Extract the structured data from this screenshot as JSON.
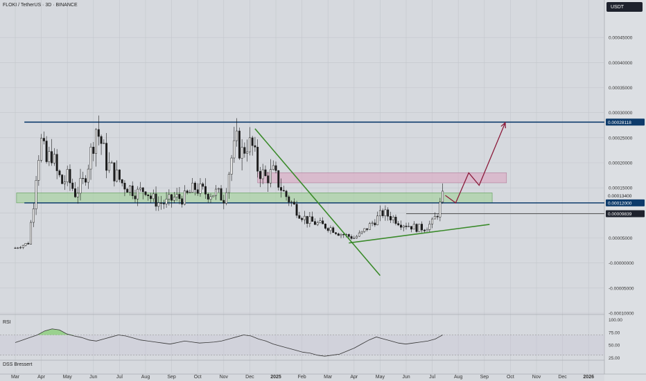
{
  "header": {
    "title": "FLOKI / TetherUS · 3D · BINANCE",
    "currency_button": "USDT"
  },
  "panels": {
    "rsi_label": "RSI",
    "dss_label": "DSS Bressert"
  },
  "colors": {
    "background": "#d6d9de",
    "grid": "#c3c6cc",
    "candle": "#1a1a1a",
    "resistance_line": "#0d3b6b",
    "green_zone": "#a8d1a3",
    "pink_zone": "#d9b3c8",
    "trend_green": "#3a8a2a",
    "projection": "#8b1a3a",
    "rsi_fill": "#8fcf80"
  },
  "chart_data": {
    "type": "candlestick",
    "title": "FLOKI / TetherUS · 3D · BINANCE",
    "ylim": [
      -0.0001,
      0.0005
    ],
    "y_ticks": [
      "-0.00010000",
      "-0.00005000",
      "-0.00000000",
      "0.00005000",
      "0.00010000",
      "0.00015000",
      "0.00020000",
      "0.00025000",
      "0.00030000",
      "0.00035000",
      "0.00040000",
      "0.00045000"
    ],
    "x_ticks": [
      "Mar",
      "Apr",
      "May",
      "Jun",
      "Jul",
      "Aug",
      "Sep",
      "Oct",
      "Nov",
      "Dec",
      "2025",
      "Feb",
      "Mar",
      "Apr",
      "May",
      "Jun",
      "Jul",
      "Aug",
      "Sep",
      "Oct",
      "Nov",
      "Dec",
      "2026"
    ],
    "price_labels": [
      {
        "value": 0.00028118,
        "text": "0.00028118",
        "style": "resistance"
      },
      {
        "value": 0.000134,
        "text": "0.00013400",
        "style": "plain"
      },
      {
        "value": 0.00012,
        "text": "0.00012000",
        "style": "resistance"
      },
      {
        "value": 9.839e-05,
        "text": "0.00009839",
        "style": "current"
      }
    ],
    "close_path": [
      [
        0.0,
        3e-05
      ],
      [
        0.5,
        4e-05
      ],
      [
        0.7,
        0.00012
      ],
      [
        0.85,
        0.00021
      ],
      [
        1.0,
        0.00024
      ],
      [
        1.2,
        0.0002
      ],
      [
        1.4,
        0.00022
      ],
      [
        1.6,
        0.00018
      ],
      [
        1.8,
        0.00016
      ],
      [
        2.0,
        0.00017
      ],
      [
        2.3,
        0.00014
      ],
      [
        2.6,
        0.00016
      ],
      [
        2.9,
        0.00022
      ],
      [
        3.1,
        0.00027
      ],
      [
        3.3,
        0.00024
      ],
      [
        3.5,
        0.0002
      ],
      [
        3.8,
        0.00018
      ],
      [
        4.1,
        0.00016
      ],
      [
        4.4,
        0.00015
      ],
      [
        4.7,
        0.00014
      ],
      [
        5.0,
        0.00015
      ],
      [
        5.2,
        0.00013
      ],
      [
        5.5,
        0.00012
      ],
      [
        5.8,
        0.00012
      ],
      [
        6.1,
        0.00013
      ],
      [
        6.5,
        0.00013
      ],
      [
        6.9,
        0.00015
      ],
      [
        7.3,
        0.00014
      ],
      [
        7.7,
        0.00014
      ],
      [
        8.0,
        0.00013
      ],
      [
        8.3,
        0.00021
      ],
      [
        8.5,
        0.00024
      ],
      [
        8.7,
        0.00022
      ],
      [
        8.9,
        0.00024
      ],
      [
        9.1,
        0.00023
      ],
      [
        9.3,
        0.00019
      ],
      [
        9.6,
        0.00017
      ],
      [
        9.9,
        0.00018
      ],
      [
        10.1,
        0.00016
      ],
      [
        10.3,
        0.00014
      ],
      [
        10.6,
        0.00012
      ],
      [
        10.9,
        0.0001
      ],
      [
        11.2,
        8.5e-05
      ],
      [
        11.5,
        8e-05
      ],
      [
        11.8,
        7.5e-05
      ],
      [
        12.1,
        7e-05
      ],
      [
        12.4,
        6e-05
      ],
      [
        12.7,
        5.5e-05
      ],
      [
        13.0,
        5e-05
      ],
      [
        13.3,
        6e-05
      ],
      [
        13.5,
        7e-05
      ],
      [
        13.7,
        8e-05
      ],
      [
        13.9,
        9e-05
      ],
      [
        14.1,
        0.0001
      ],
      [
        14.3,
        9.5e-05
      ],
      [
        14.5,
        9e-05
      ],
      [
        14.8,
        8e-05
      ],
      [
        15.1,
        7.5e-05
      ],
      [
        15.4,
        7e-05
      ],
      [
        15.7,
        7e-05
      ],
      [
        16.0,
        8e-05
      ],
      [
        16.2,
        0.0001
      ],
      [
        16.4,
        0.00013
      ]
    ],
    "annotations": {
      "resistance_line": {
        "y": 0.00028118,
        "x_from": 0.35
      },
      "support_line": {
        "y": 0.00012,
        "x_from": 0.35
      },
      "current_line": {
        "y": 9.839e-05,
        "x_from": 15.0
      },
      "green_zone": {
        "y_low": 0.00012,
        "y_high": 0.00014,
        "x_from": 0.05,
        "x_to": 18.3
      },
      "pink_zone": {
        "y_low": 0.00016,
        "y_high": 0.00018,
        "x_from": 9.3,
        "x_to": 18.85
      },
      "downtrend": {
        "from": [
          9.2,
          0.000268
        ],
        "to": [
          14.0,
          -2.5e-05
        ]
      },
      "uptrend": {
        "from": [
          12.8,
          4e-05
        ],
        "to": [
          18.2,
          7.7e-05
        ]
      },
      "projection": [
        [
          16.5,
          0.000135
        ],
        [
          16.9,
          0.00012
        ],
        [
          17.4,
          0.00018
        ],
        [
          17.8,
          0.000155
        ],
        [
          18.8,
          0.00028
        ]
      ]
    },
    "rsi": {
      "levels": [
        25,
        50,
        75,
        100
      ],
      "tick_labels": [
        "25.00",
        "50.00",
        "75.00",
        "100.00"
      ],
      "band": [
        30,
        70
      ],
      "values": [
        55,
        60,
        65,
        70,
        78,
        82,
        80,
        72,
        68,
        65,
        60,
        58,
        62,
        66,
        70,
        68,
        64,
        60,
        58,
        56,
        54,
        52,
        55,
        58,
        56,
        54,
        55,
        56,
        58,
        62,
        66,
        70,
        68,
        62,
        58,
        52,
        48,
        44,
        40,
        36,
        34,
        30,
        28,
        30,
        32,
        38,
        44,
        52,
        60,
        66,
        62,
        58,
        54,
        52,
        54,
        56,
        58,
        62,
        70
      ]
    }
  }
}
